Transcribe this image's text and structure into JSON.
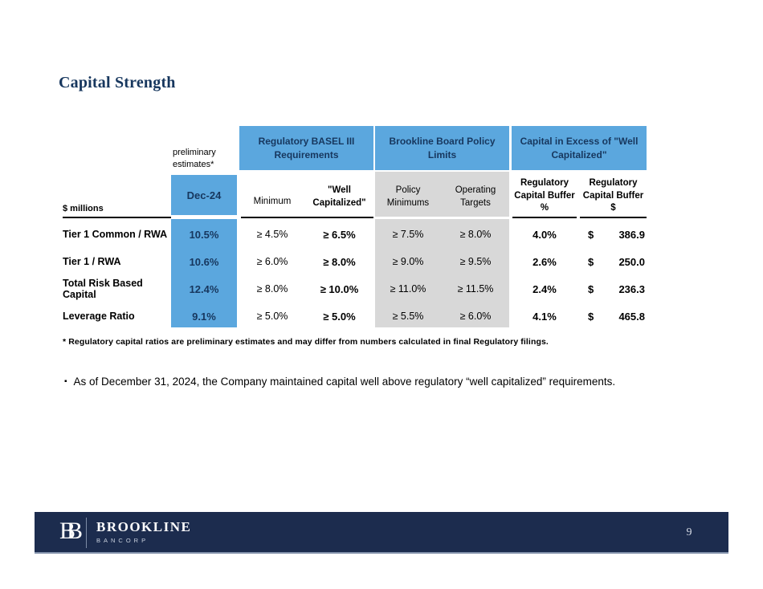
{
  "colors": {
    "accent_blue": "#5BA7DE",
    "navy_text": "#17375E",
    "gray_fill": "#D8D8D8",
    "footer_navy": "#1C2C4E"
  },
  "slide": {
    "title": "Capital Strength",
    "footnote": "* Regulatory capital ratios are preliminary estimates and may differ from numbers calculated in final Regulatory filings.",
    "bullet_icon": "▪",
    "bullet_text": "As of December 31, 2024, the Company maintained capital well above regulatory “well capitalized” requirements."
  },
  "table": {
    "preliminary_note": "preliminary estimates*",
    "units_label": "$ millions",
    "group_headers": {
      "basel": "Regulatory BASEL III Requirements",
      "board_policy": "Brookline Board Policy Limits",
      "excess_capital": "Capital in Excess of \"Well Capitalized\""
    },
    "column_headers": {
      "period": "Dec-24",
      "minimum": "Minimum",
      "well_capitalized": "\"Well Capitalized\"",
      "policy_minimums": "Policy Minimums",
      "operating_targets": "Operating Targets",
      "buffer_pct": "Regulatory Capital Buffer %",
      "buffer_usd": "Regulatory Capital Buffer $"
    },
    "rows": [
      {
        "label": "Tier 1 Common / RWA",
        "dec24": "10.5%",
        "minimum": "≥ 4.5%",
        "well_capitalized": "≥ 6.5%",
        "policy_minimum": "≥ 7.5%",
        "operating_target": "≥ 8.0%",
        "buffer_pct": "4.0%",
        "currency": "$",
        "buffer_usd": "386.9"
      },
      {
        "label": "Tier 1 / RWA",
        "dec24": "10.6%",
        "minimum": "≥ 6.0%",
        "well_capitalized": "≥ 8.0%",
        "policy_minimum": "≥ 9.0%",
        "operating_target": "≥ 9.5%",
        "buffer_pct": "2.6%",
        "currency": "$",
        "buffer_usd": "250.0"
      },
      {
        "label": "Total Risk Based Capital",
        "dec24": "12.4%",
        "minimum": "≥ 8.0%",
        "well_capitalized": "≥ 10.0%",
        "policy_minimum": "≥ 11.0%",
        "operating_target": "≥ 11.5%",
        "buffer_pct": "2.4%",
        "currency": "$",
        "buffer_usd": "236.3"
      },
      {
        "label": "Leverage Ratio",
        "dec24": "9.1%",
        "minimum": "≥ 5.0%",
        "well_capitalized": "≥ 5.0%",
        "policy_minimum": "≥ 5.5%",
        "operating_target": "≥ 6.0%",
        "buffer_pct": "4.1%",
        "currency": "$",
        "buffer_usd": "465.8"
      }
    ]
  },
  "footer": {
    "logo_letter": "B",
    "brand_name": "BROOKLINE",
    "brand_subtitle": "BANCORP",
    "page_number": "9"
  }
}
